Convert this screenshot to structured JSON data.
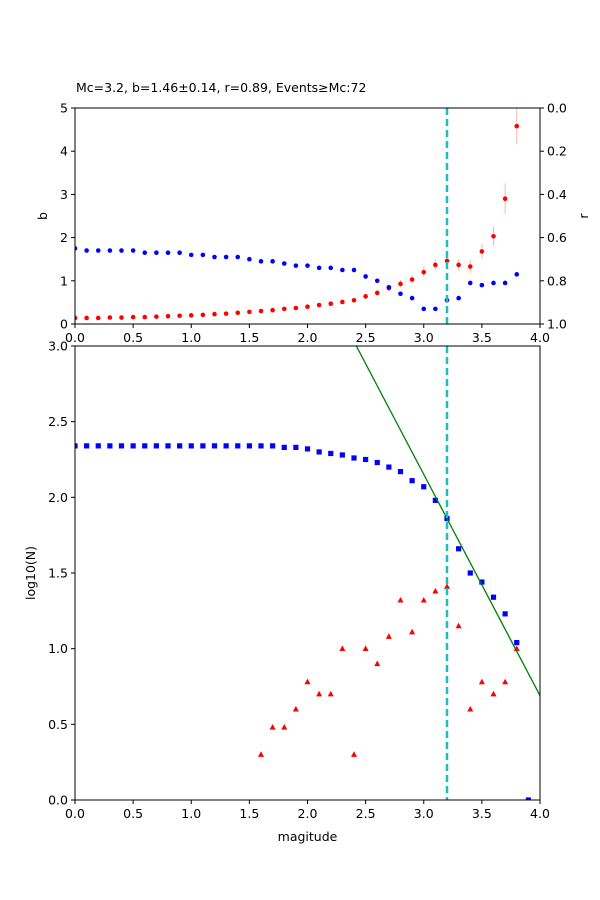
{
  "chart_data": [
    {
      "type": "scatter",
      "title": "Mc=3.2, b=1.46±0.14, r=0.89, Events≥Mc:72",
      "y_label": "b",
      "y2_label": "r",
      "xlim": [
        0,
        4
      ],
      "xticks": [
        {
          "value": 0,
          "label": "0.0"
        },
        0.5,
        {
          "value": 1,
          "label": "1.0"
        },
        1.5,
        {
          "value": 2,
          "label": "2.0"
        },
        2.5,
        {
          "value": 3,
          "label": "3.0"
        },
        3.5,
        {
          "value": 4,
          "label": "4.0"
        }
      ],
      "ylim": [
        0,
        5
      ],
      "yticks": [
        0,
        1,
        2,
        3,
        4,
        5
      ],
      "y2lim": [
        1,
        0
      ],
      "y2ticks": [
        {
          "value": 1,
          "label": "1.0"
        },
        0.8,
        0.6,
        0.4,
        0.2,
        {
          "value": 0,
          "label": "0.0"
        }
      ],
      "vlines": [
        3.2
      ],
      "vline_color": "#17bfbf",
      "series": [
        {
          "color": "#ff0000",
          "marker": "o",
          "error_color": "#f4b8b8",
          "x": [
            0,
            0.1,
            0.2,
            0.3,
            0.4,
            0.5,
            0.6,
            0.7,
            0.8,
            0.9,
            1.0,
            1.1,
            1.2,
            1.3,
            1.4,
            1.5,
            1.6,
            1.7,
            1.8,
            1.9,
            2.0,
            2.1,
            2.2,
            2.3,
            2.4,
            2.5,
            2.6,
            2.7,
            2.8,
            2.9,
            3.0,
            3.1,
            3.2,
            3.3,
            3.4,
            3.5,
            3.6,
            3.7,
            3.8
          ],
          "values": [
            0.14,
            0.14,
            0.14,
            0.15,
            0.15,
            0.16,
            0.16,
            0.17,
            0.18,
            0.19,
            0.2,
            0.21,
            0.23,
            0.24,
            0.26,
            0.28,
            0.3,
            0.32,
            0.35,
            0.37,
            0.4,
            0.44,
            0.47,
            0.51,
            0.55,
            0.64,
            0.72,
            0.83,
            0.93,
            1.03,
            1.2,
            1.37,
            1.46,
            1.37,
            1.33,
            1.68,
            2.03,
            2.9,
            4.58
          ],
          "errors": [
            0.01,
            0.01,
            0.01,
            0.01,
            0.01,
            0.01,
            0.01,
            0.01,
            0.01,
            0.01,
            0.01,
            0.01,
            0.01,
            0.01,
            0.02,
            0.02,
            0.02,
            0.02,
            0.02,
            0.03,
            0.03,
            0.03,
            0.04,
            0.04,
            0.05,
            0.06,
            0.07,
            0.08,
            0.09,
            0.1,
            0.11,
            0.13,
            0.14,
            0.14,
            0.15,
            0.17,
            0.22,
            0.35,
            0.42
          ]
        },
        {
          "color": "#0000ff",
          "marker": "o",
          "axis": "y2",
          "x": [
            0,
            0.1,
            0.2,
            0.3,
            0.4,
            0.5,
            0.6,
            0.7,
            0.8,
            0.9,
            1.0,
            1.1,
            1.2,
            1.3,
            1.4,
            1.5,
            1.6,
            1.7,
            1.8,
            1.9,
            2.0,
            2.1,
            2.2,
            2.3,
            2.4,
            2.5,
            2.6,
            2.7,
            2.8,
            2.9,
            3.0,
            3.1,
            3.2,
            3.3,
            3.4,
            3.5,
            3.6,
            3.7,
            3.8
          ],
          "values": [
            0.65,
            0.66,
            0.66,
            0.66,
            0.66,
            0.66,
            0.67,
            0.67,
            0.67,
            0.67,
            0.68,
            0.68,
            0.69,
            0.69,
            0.69,
            0.7,
            0.71,
            0.71,
            0.72,
            0.73,
            0.73,
            0.74,
            0.74,
            0.75,
            0.75,
            0.78,
            0.8,
            0.83,
            0.86,
            0.88,
            0.93,
            0.93,
            0.89,
            0.88,
            0.81,
            0.82,
            0.81,
            0.81,
            0.77
          ]
        }
      ]
    },
    {
      "type": "scatter",
      "x_label": "magitude",
      "y_label": "log10(N)",
      "xlim": [
        0,
        4
      ],
      "xticks": [
        {
          "value": 0,
          "label": "0.0"
        },
        0.5,
        {
          "value": 1,
          "label": "1.0"
        },
        1.5,
        {
          "value": 2,
          "label": "2.0"
        },
        2.5,
        {
          "value": 3,
          "label": "3.0"
        },
        3.5,
        {
          "value": 4,
          "label": "4.0"
        }
      ],
      "ylim": [
        0,
        3
      ],
      "yticks": [
        {
          "value": 0,
          "label": "0.0"
        },
        0.5,
        {
          "value": 1,
          "label": "1.0"
        },
        1.5,
        {
          "value": 2,
          "label": "2.0"
        },
        2.5,
        {
          "value": 3,
          "label": "3.0"
        }
      ],
      "vlines": [
        3.2
      ],
      "vline_color": "#17bfbf",
      "series": [
        {
          "color": "#0000ff",
          "marker": "s",
          "x": [
            0,
            0.1,
            0.2,
            0.3,
            0.4,
            0.5,
            0.6,
            0.7,
            0.8,
            0.9,
            1.0,
            1.1,
            1.2,
            1.3,
            1.4,
            1.5,
            1.6,
            1.7,
            1.8,
            1.9,
            2.0,
            2.1,
            2.2,
            2.3,
            2.4,
            2.5,
            2.6,
            2.7,
            2.8,
            2.9,
            3.0,
            3.1,
            3.2,
            3.3,
            3.4,
            3.5,
            3.6,
            3.7,
            3.8,
            3.9
          ],
          "values": [
            2.34,
            2.34,
            2.34,
            2.34,
            2.34,
            2.34,
            2.34,
            2.34,
            2.34,
            2.34,
            2.34,
            2.34,
            2.34,
            2.34,
            2.34,
            2.34,
            2.34,
            2.34,
            2.33,
            2.33,
            2.32,
            2.3,
            2.29,
            2.28,
            2.26,
            2.25,
            2.23,
            2.2,
            2.17,
            2.11,
            2.07,
            1.98,
            1.86,
            1.66,
            1.5,
            1.44,
            1.34,
            1.23,
            1.04,
            0.0
          ]
        },
        {
          "color": "#ff0000",
          "marker": "^",
          "x": [
            1.6,
            1.7,
            1.8,
            1.9,
            2.0,
            2.1,
            2.2,
            2.3,
            2.4,
            2.5,
            2.6,
            2.7,
            2.8,
            2.9,
            3.0,
            3.1,
            3.2,
            3.3,
            3.4,
            3.5,
            3.6,
            3.7,
            3.8
          ],
          "values": [
            0.3,
            0.48,
            0.48,
            0.6,
            0.78,
            0.7,
            0.7,
            1.0,
            0.3,
            1.0,
            0.9,
            1.08,
            1.32,
            1.11,
            1.32,
            1.38,
            1.41,
            1.15,
            0.6,
            0.78,
            0.7,
            0.78,
            1.0
          ]
        },
        {
          "color": "#008000",
          "marker": "line",
          "x": [
            2.42,
            4.0
          ],
          "values": [
            3.0,
            0.69
          ]
        }
      ]
    }
  ]
}
